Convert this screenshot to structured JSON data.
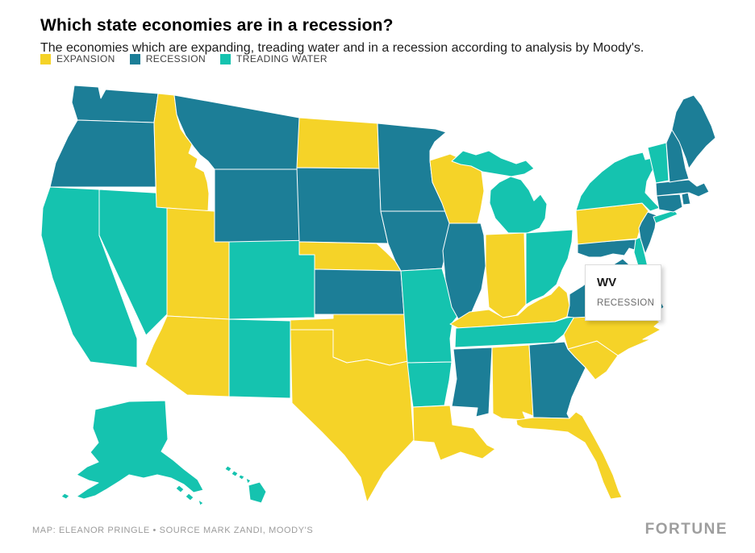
{
  "header": {
    "title": "Which state economies are in a recession?",
    "subtitle": "The economies which are expanding, treading water and in a recession according to analysis by Moody's."
  },
  "legend": {
    "items": [
      {
        "label": "EXPANSION",
        "status": "expansion",
        "color": "#F5D328"
      },
      {
        "label": "RECESSION",
        "status": "recession",
        "color": "#1C7E97"
      },
      {
        "label": "TREADING WATER",
        "status": "treading_water",
        "color": "#15C3AF"
      }
    ]
  },
  "tooltip": {
    "state": "WV",
    "status_label": "RECESSION"
  },
  "footer": {
    "credit": "MAP: ELEANOR PRINGLE • SOURCE MARK ZANDI, MOODY'S",
    "brand": "FORTUNE"
  },
  "chart_data": {
    "type": "heatmap",
    "subtype": "us-state-choropleth",
    "title": "Which state economies are in a recession?",
    "legend_position": "top-left",
    "highlighted_state": "WV",
    "categories": [
      "expansion",
      "recession",
      "treading_water"
    ],
    "states": [
      {
        "abbr": "WA",
        "status": "recession"
      },
      {
        "abbr": "OR",
        "status": "recession"
      },
      {
        "abbr": "CA",
        "status": "treading_water"
      },
      {
        "abbr": "NV",
        "status": "treading_water"
      },
      {
        "abbr": "ID",
        "status": "expansion"
      },
      {
        "abbr": "MT",
        "status": "recession"
      },
      {
        "abbr": "WY",
        "status": "recession"
      },
      {
        "abbr": "UT",
        "status": "expansion"
      },
      {
        "abbr": "CO",
        "status": "treading_water"
      },
      {
        "abbr": "AZ",
        "status": "expansion"
      },
      {
        "abbr": "NM",
        "status": "treading_water"
      },
      {
        "abbr": "ND",
        "status": "expansion"
      },
      {
        "abbr": "SD",
        "status": "recession"
      },
      {
        "abbr": "NE",
        "status": "expansion"
      },
      {
        "abbr": "KS",
        "status": "recession"
      },
      {
        "abbr": "OK",
        "status": "expansion"
      },
      {
        "abbr": "TX",
        "status": "expansion"
      },
      {
        "abbr": "MN",
        "status": "recession"
      },
      {
        "abbr": "IA",
        "status": "recession"
      },
      {
        "abbr": "MO",
        "status": "treading_water"
      },
      {
        "abbr": "AR",
        "status": "treading_water"
      },
      {
        "abbr": "LA",
        "status": "expansion"
      },
      {
        "abbr": "WI",
        "status": "expansion"
      },
      {
        "abbr": "IL",
        "status": "recession"
      },
      {
        "abbr": "MI",
        "status": "treading_water"
      },
      {
        "abbr": "IN",
        "status": "expansion"
      },
      {
        "abbr": "OH",
        "status": "treading_water"
      },
      {
        "abbr": "KY",
        "status": "expansion"
      },
      {
        "abbr": "TN",
        "status": "treading_water"
      },
      {
        "abbr": "MS",
        "status": "recession"
      },
      {
        "abbr": "AL",
        "status": "expansion"
      },
      {
        "abbr": "GA",
        "status": "recession"
      },
      {
        "abbr": "FL",
        "status": "expansion"
      },
      {
        "abbr": "SC",
        "status": "expansion"
      },
      {
        "abbr": "NC",
        "status": "expansion"
      },
      {
        "abbr": "VA",
        "status": "recession"
      },
      {
        "abbr": "WV",
        "status": "recession"
      },
      {
        "abbr": "MD",
        "status": "recession"
      },
      {
        "abbr": "DE",
        "status": "treading_water"
      },
      {
        "abbr": "PA",
        "status": "expansion"
      },
      {
        "abbr": "NJ",
        "status": "recession"
      },
      {
        "abbr": "NY",
        "status": "treading_water"
      },
      {
        "abbr": "CT",
        "status": "recession"
      },
      {
        "abbr": "RI",
        "status": "recession"
      },
      {
        "abbr": "MA",
        "status": "recession"
      },
      {
        "abbr": "VT",
        "status": "treading_water"
      },
      {
        "abbr": "NH",
        "status": "recession"
      },
      {
        "abbr": "ME",
        "status": "recession"
      },
      {
        "abbr": "AK",
        "status": "treading_water"
      },
      {
        "abbr": "HI",
        "status": "treading_water"
      }
    ]
  }
}
